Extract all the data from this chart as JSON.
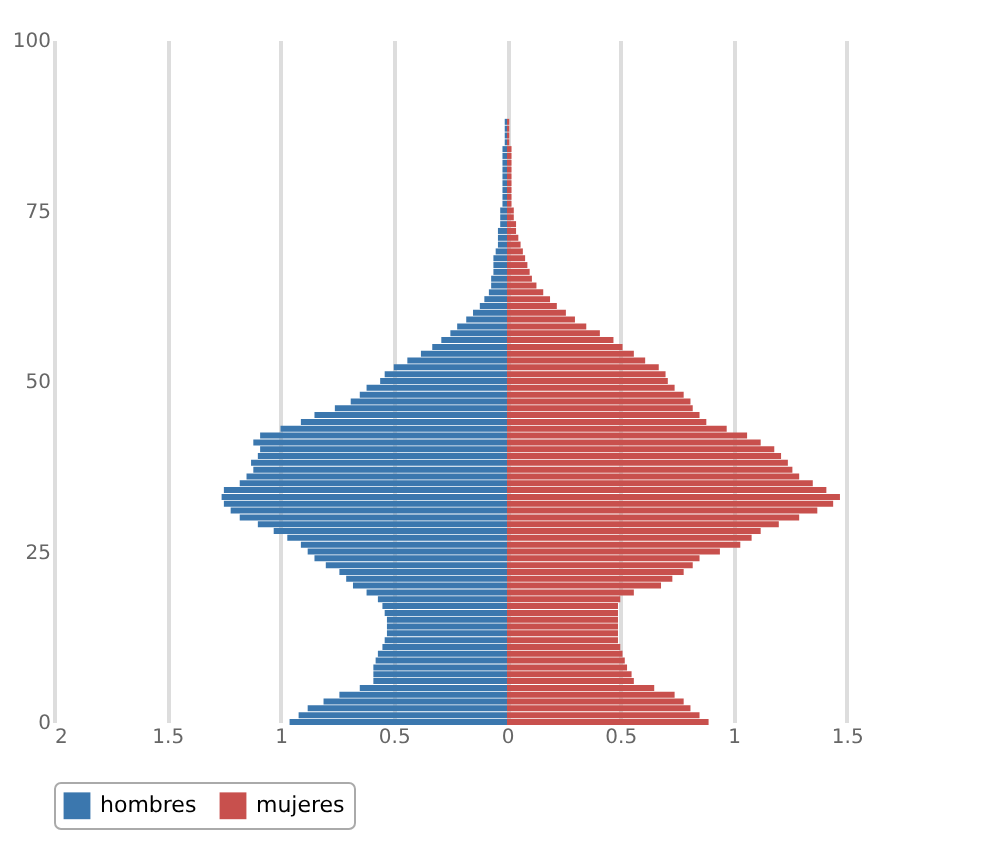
{
  "chart_data": {
    "type": "bar",
    "orientation": "horizontal",
    "stacked": true,
    "x": [
      0,
      1,
      2,
      3,
      4,
      5,
      6,
      7,
      8,
      9,
      10,
      11,
      12,
      13,
      14,
      15,
      16,
      17,
      18,
      19,
      20,
      21,
      22,
      23,
      24,
      25,
      26,
      27,
      28,
      29,
      30,
      31,
      32,
      33,
      34,
      35,
      36,
      37,
      38,
      39,
      40,
      41,
      42,
      43,
      44,
      45,
      46,
      47,
      48,
      49,
      50,
      51,
      52,
      53,
      54,
      55,
      56,
      57,
      58,
      59,
      60,
      61,
      62,
      63,
      64,
      65,
      66,
      67,
      68,
      69,
      70,
      71,
      72,
      73,
      74,
      75,
      76,
      77,
      78,
      79,
      80,
      81,
      82,
      83,
      84,
      85,
      86,
      87,
      88
    ],
    "series": [
      {
        "name": "hombres",
        "color": "#3b77ae",
        "values": [
          -0.96,
          -0.92,
          -0.88,
          -0.81,
          -0.74,
          -0.65,
          -0.59,
          -0.59,
          -0.59,
          -0.58,
          -0.57,
          -0.55,
          -0.54,
          -0.53,
          -0.53,
          -0.53,
          -0.54,
          -0.55,
          -0.57,
          -0.62,
          -0.68,
          -0.71,
          -0.74,
          -0.8,
          -0.85,
          -0.88,
          -0.91,
          -0.97,
          -1.03,
          -1.1,
          -1.18,
          -1.22,
          -1.25,
          -1.26,
          -1.25,
          -1.18,
          -1.15,
          -1.12,
          -1.13,
          -1.1,
          -1.09,
          -1.12,
          -1.09,
          -1.0,
          -0.91,
          -0.85,
          -0.76,
          -0.69,
          -0.65,
          -0.62,
          -0.56,
          -0.54,
          -0.5,
          -0.44,
          -0.38,
          -0.33,
          -0.29,
          -0.25,
          -0.22,
          -0.18,
          -0.15,
          -0.12,
          -0.1,
          -0.08,
          -0.07,
          -0.07,
          -0.06,
          -0.06,
          -0.06,
          -0.05,
          -0.04,
          -0.04,
          -0.04,
          -0.03,
          -0.03,
          -0.03,
          -0.02,
          -0.02,
          -0.02,
          -0.02,
          -0.02,
          -0.02,
          -0.02,
          -0.02,
          -0.02,
          -0.01,
          -0.01,
          -0.01,
          -0.01
        ]
      },
      {
        "name": "mujeres",
        "color": "#c8504d",
        "values": [
          0.89,
          0.85,
          0.81,
          0.78,
          0.74,
          0.65,
          0.56,
          0.55,
          0.53,
          0.52,
          0.51,
          0.5,
          0.49,
          0.49,
          0.49,
          0.49,
          0.49,
          0.49,
          0.5,
          0.56,
          0.68,
          0.73,
          0.78,
          0.82,
          0.85,
          0.94,
          1.03,
          1.08,
          1.12,
          1.2,
          1.29,
          1.37,
          1.44,
          1.47,
          1.41,
          1.35,
          1.29,
          1.26,
          1.24,
          1.21,
          1.18,
          1.12,
          1.06,
          0.97,
          0.88,
          0.85,
          0.82,
          0.81,
          0.78,
          0.74,
          0.71,
          0.7,
          0.67,
          0.61,
          0.56,
          0.51,
          0.47,
          0.41,
          0.35,
          0.3,
          0.26,
          0.22,
          0.19,
          0.16,
          0.13,
          0.11,
          0.1,
          0.09,
          0.08,
          0.07,
          0.06,
          0.05,
          0.04,
          0.04,
          0.03,
          0.03,
          0.02,
          0.02,
          0.02,
          0.02,
          0.02,
          0.02,
          0.02,
          0.02,
          0.02,
          0.01,
          0.01,
          0.01,
          0.01
        ]
      }
    ],
    "xlim": [
      -2,
      2
    ],
    "xticks": [
      {
        "value": -2,
        "label": "2"
      },
      {
        "value": -1.5,
        "label": "1.5"
      },
      {
        "value": -1,
        "label": "1"
      },
      {
        "value": -0.5,
        "label": "0.5"
      },
      0,
      0.5,
      1,
      1.5
    ],
    "ylim": [
      0,
      100
    ],
    "yticks": [
      0,
      25,
      50,
      75,
      100
    ],
    "grid": "x",
    "legend": "bottom"
  }
}
